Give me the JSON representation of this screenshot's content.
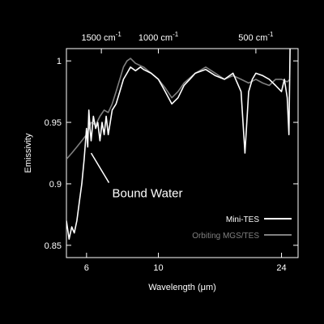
{
  "chart_data": {
    "type": "line",
    "title": "",
    "xlabel": "Wavelength (μm)",
    "ylabel": "Emissivity",
    "x_scale": "log",
    "xlim": [
      5.2,
      27
    ],
    "ylim": [
      0.84,
      1.01
    ],
    "x_ticks": [
      6,
      10,
      24
    ],
    "x_tick_labels": [
      "6",
      "10",
      "24"
    ],
    "y_ticks": [
      0.85,
      0.9,
      0.95,
      1.0
    ],
    "y_tick_labels": [
      "0.85",
      "0.9",
      "0.95",
      "1"
    ],
    "top_axis": {
      "label_unit": "wavenumber",
      "ticks": [
        1500,
        1000,
        500
      ],
      "tick_labels": [
        "1500 cm",
        "1000 cm",
        "500 cm"
      ],
      "tick_label_superscript": "-1"
    },
    "grid": false,
    "legend": {
      "position": "bottom-right",
      "entries": [
        {
          "name": "Mini-TES",
          "color": "#ffffff"
        },
        {
          "name": "Orbiting MGS/TES",
          "color": "#808080"
        }
      ]
    },
    "annotations": [
      {
        "text": "Bound Water",
        "x": 7.2,
        "y": 0.893,
        "arrow_to": [
          6.2,
          0.925
        ]
      }
    ],
    "series": [
      {
        "name": "Mini-TES",
        "color": "#ffffff",
        "x": [
          5.2,
          5.3,
          5.4,
          5.5,
          5.6,
          5.7,
          5.8,
          5.9,
          6.0,
          6.05,
          6.1,
          6.15,
          6.2,
          6.3,
          6.4,
          6.5,
          6.6,
          6.7,
          6.8,
          6.9,
          7.0,
          7.1,
          7.2,
          7.4,
          7.6,
          7.8,
          8.0,
          8.2,
          8.5,
          8.8,
          9.0,
          9.5,
          10.0,
          10.5,
          11.0,
          11.5,
          12.0,
          12.5,
          13.0,
          14.0,
          15.0,
          16.0,
          17.0,
          18.0,
          18.5,
          19.0,
          19.5,
          20.0,
          21.0,
          22.0,
          23.0,
          24.0,
          24.5,
          25.0,
          25.3,
          25.5
        ],
        "y": [
          0.87,
          0.855,
          0.865,
          0.86,
          0.87,
          0.885,
          0.9,
          0.92,
          0.945,
          0.93,
          0.96,
          0.945,
          0.935,
          0.955,
          0.945,
          0.95,
          0.935,
          0.95,
          0.94,
          0.955,
          0.94,
          0.95,
          0.96,
          0.965,
          0.975,
          0.985,
          0.99,
          0.995,
          0.992,
          0.995,
          0.993,
          0.99,
          0.985,
          0.975,
          0.965,
          0.97,
          0.98,
          0.985,
          0.99,
          0.993,
          0.988,
          0.985,
          0.99,
          0.975,
          0.925,
          0.975,
          0.985,
          0.99,
          0.988,
          0.985,
          0.98,
          0.975,
          0.985,
          0.97,
          0.94,
          1.01
        ]
      },
      {
        "name": "Orbiting MGS/TES",
        "color": "#808080",
        "x": [
          5.2,
          5.4,
          5.6,
          5.8,
          6.0,
          6.1,
          6.2,
          6.4,
          6.6,
          6.8,
          7.0,
          7.2,
          7.4,
          7.6,
          7.8,
          8.0,
          8.2,
          8.5,
          9.0,
          9.5,
          10.0,
          10.5,
          11.0,
          11.5,
          12.0,
          13.0,
          14.0,
          15.0,
          16.0,
          17.0,
          18.0,
          19.0,
          20.0,
          21.0,
          22.0,
          23.0,
          24.0,
          25.0,
          25.5
        ],
        "y": [
          0.92,
          0.925,
          0.93,
          0.935,
          0.94,
          0.945,
          0.95,
          0.948,
          0.955,
          0.96,
          0.958,
          0.965,
          0.975,
          0.985,
          0.995,
          1.0,
          1.002,
          0.998,
          0.995,
          0.99,
          0.985,
          0.978,
          0.97,
          0.975,
          0.982,
          0.99,
          0.995,
          0.99,
          0.985,
          0.988,
          0.985,
          0.982,
          0.985,
          0.982,
          0.98,
          0.985,
          0.985,
          0.983,
          0.985
        ]
      }
    ]
  }
}
